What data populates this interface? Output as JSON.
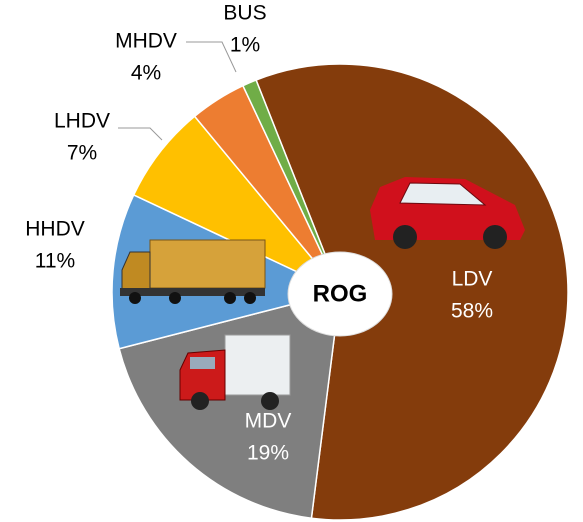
{
  "chart_data": {
    "type": "pie",
    "center_label": "ROG",
    "categories": [
      "LDV",
      "MDV",
      "HHDV",
      "LHDV",
      "MHDV",
      "BUS"
    ],
    "values": [
      58,
      19,
      11,
      7,
      4,
      1
    ],
    "value_labels": [
      "58%",
      "19%",
      "11%",
      "7%",
      "4%",
      "1%"
    ],
    "colors": [
      "#843c0c",
      "#7f7f7f",
      "#5b9bd5",
      "#ffc000",
      "#ed7d31",
      "#70ad47"
    ]
  }
}
